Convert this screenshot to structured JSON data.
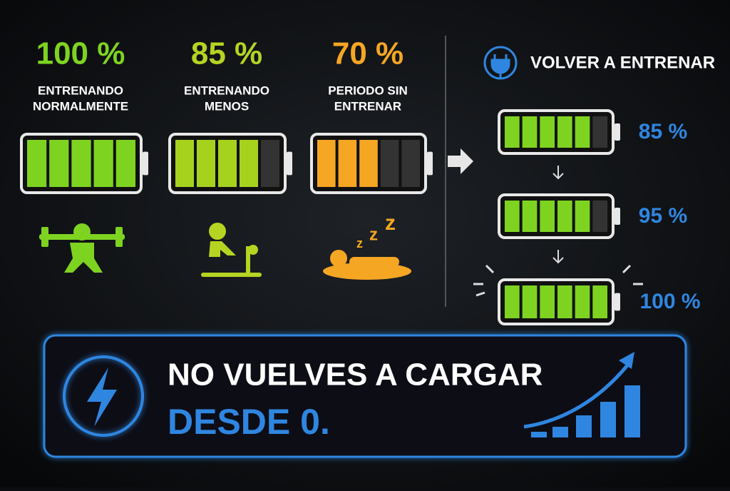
{
  "states": [
    {
      "percent": "100 %",
      "label_lines": [
        "ENTRENANDO",
        "NORMALMENTE"
      ]
    },
    {
      "percent": "85 %",
      "label_lines": [
        "ENTRENANDO",
        "MENOS"
      ]
    },
    {
      "percent": "70 %",
      "label_lines": [
        "PERIODO SIN",
        "ENTRENAR"
      ]
    }
  ],
  "recovery": {
    "title": "VOLVER A ENTRENAR",
    "steps": [
      "85 %",
      "95 %",
      "100 %"
    ]
  },
  "banner": {
    "line1": "NO VUELVES A CARGAR",
    "line2": "DESDE 0."
  }
}
